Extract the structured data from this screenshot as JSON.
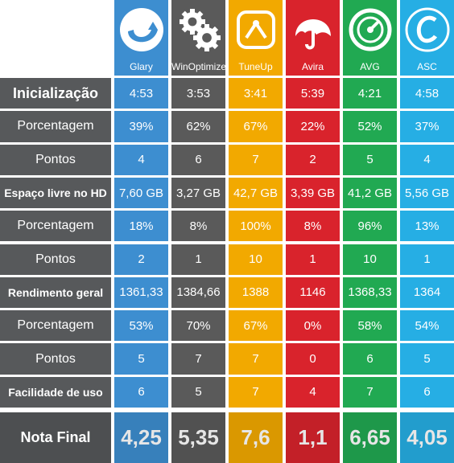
{
  "colors": {
    "label_bg": "#57595b",
    "columns": [
      "#3d8ed0",
      "#5a5a5a",
      "#f2a900",
      "#d9232c",
      "#21a952",
      "#26aee4"
    ]
  },
  "columns": [
    {
      "name": "Glary",
      "icon": "glary-logo-icon"
    },
    {
      "name": "WinOptimizer",
      "icon": "gears-icon"
    },
    {
      "name": "TuneUp",
      "icon": "tuneup-logo-icon"
    },
    {
      "name": "Avira",
      "icon": "avira-umbrella-icon"
    },
    {
      "name": "AVG",
      "icon": "avg-gauge-icon"
    },
    {
      "name": "ASC",
      "icon": "asc-logo-icon"
    }
  ],
  "rows": [
    {
      "label": "Inicialização",
      "style": "title",
      "values": [
        "4:53",
        "3:53",
        "3:41",
        "5:39",
        "4:21",
        "4:58"
      ]
    },
    {
      "label": "Porcentagem",
      "style": "normal",
      "values": [
        "39%",
        "62%",
        "67%",
        "22%",
        "52%",
        "37%"
      ]
    },
    {
      "label": "Pontos",
      "style": "normal",
      "values": [
        "4",
        "6",
        "7",
        "2",
        "5",
        "4"
      ]
    },
    {
      "label": "Espaço livre no HD",
      "style": "bold",
      "values": [
        "7,60 GB",
        "3,27 GB",
        "42,7 GB",
        "3,39 GB",
        "41,2 GB",
        "5,56 GB"
      ]
    },
    {
      "label": "Porcentagem",
      "style": "normal",
      "values": [
        "18%",
        "8%",
        "100%",
        "8%",
        "96%",
        "13%"
      ]
    },
    {
      "label": "Pontos",
      "style": "normal",
      "values": [
        "2",
        "1",
        "10",
        "1",
        "10",
        "1"
      ]
    },
    {
      "label": "Rendimento geral",
      "style": "bold",
      "values": [
        "1361,33",
        "1384,66",
        "1388",
        "1146",
        "1368,33",
        "1364"
      ]
    },
    {
      "label": "Porcentagem",
      "style": "normal",
      "values": [
        "53%",
        "70%",
        "67%",
        "0%",
        "58%",
        "54%"
      ]
    },
    {
      "label": "Pontos",
      "style": "normal",
      "values": [
        "5",
        "7",
        "7",
        "0",
        "6",
        "5"
      ]
    },
    {
      "label": "Facilidade de uso",
      "style": "bold",
      "values": [
        "6",
        "5",
        "7",
        "4",
        "7",
        "6"
      ]
    }
  ],
  "final": {
    "label": "Nota Final",
    "values": [
      "4,25",
      "5,35",
      "7,6",
      "1,1",
      "6,65",
      "4,05"
    ]
  }
}
